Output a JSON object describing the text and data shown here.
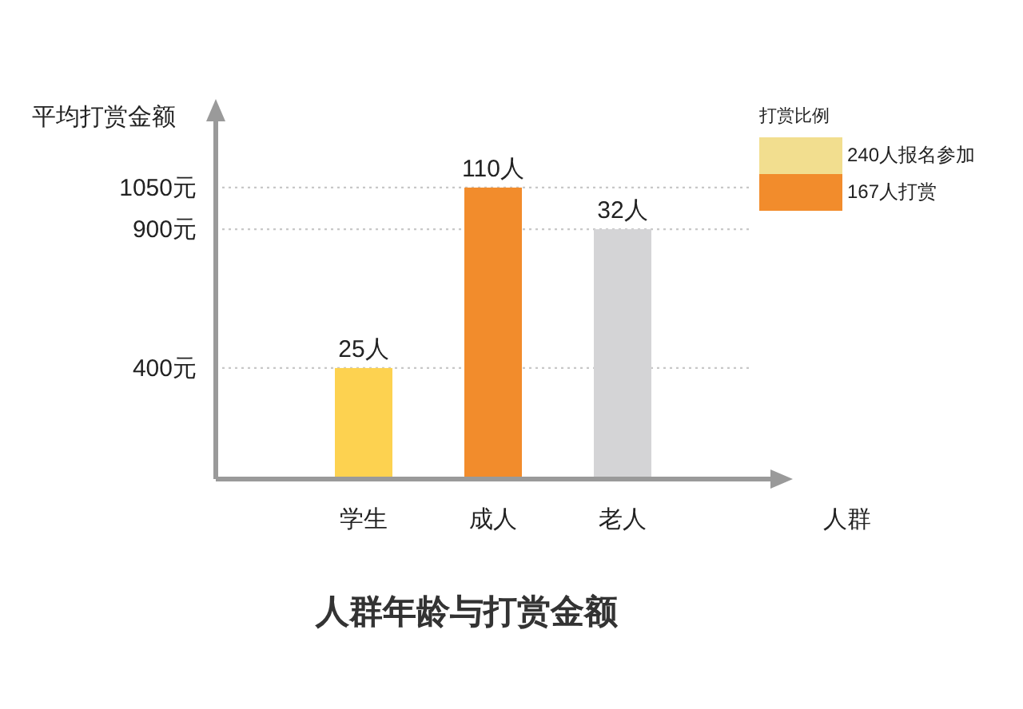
{
  "chart_data": {
    "type": "bar",
    "title": "人群年龄与打赏金额",
    "ylabel": "平均打赏金额",
    "xlabel": "人群",
    "legend_title": "打赏比例",
    "categories": [
      "学生",
      "成人",
      "老人"
    ],
    "values": [
      400,
      1050,
      900
    ],
    "colors": [
      "#fdd250",
      "#f28c2c",
      "#d4d4d6"
    ],
    "ylim": [
      0,
      1300
    ],
    "yticks": [
      {
        "value": 400,
        "label": "400元"
      },
      {
        "value": 900,
        "label": "900元"
      },
      {
        "value": 1050,
        "label": "1050元"
      }
    ],
    "ref_lines": [
      {
        "axis": "y",
        "value": 400,
        "color": "#c8c8c8",
        "line_style": "dotted"
      },
      {
        "axis": "y",
        "value": 900,
        "color": "#c8c8c8",
        "line_style": "dotted"
      },
      {
        "axis": "y",
        "value": 1050,
        "color": "#c8c8c8",
        "line_style": "dotted"
      }
    ],
    "annotations": [
      {
        "text": "25人",
        "x": "学生",
        "y": 400
      },
      {
        "text": "110人",
        "x": "成人",
        "y": 1050
      },
      {
        "text": "32人",
        "x": "老人",
        "y": 900
      },
      "240人报名参加",
      "167人打赏"
    ],
    "grid": false
  }
}
